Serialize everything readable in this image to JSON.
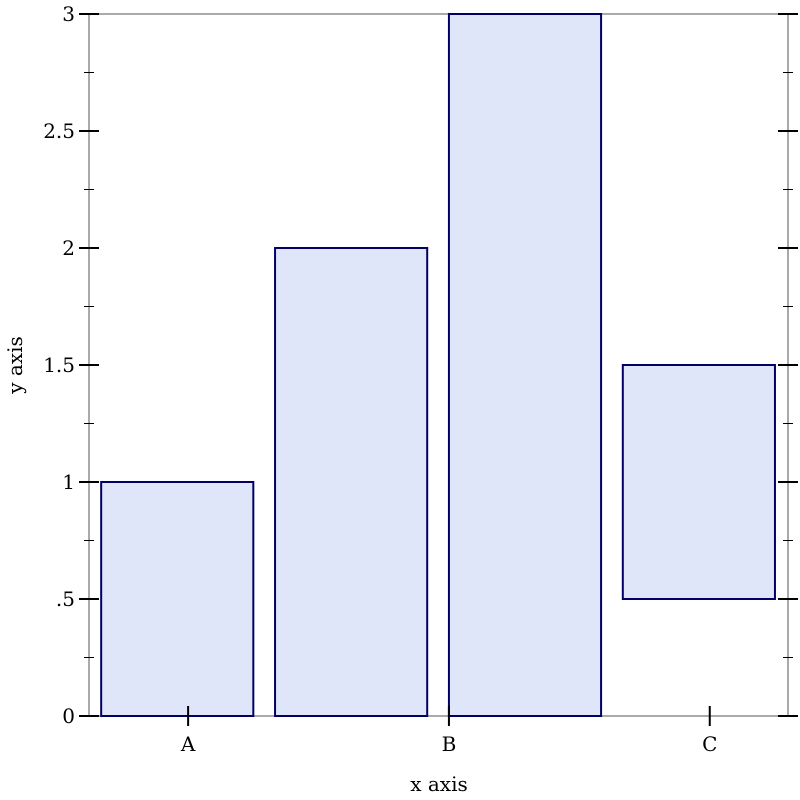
{
  "chart_data": {
    "type": "bar",
    "xlabel": "x axis",
    "ylabel": "y axis",
    "ylim": [
      0,
      3
    ],
    "yticks": [
      {
        "value": 0,
        "label": "0"
      },
      {
        "value": 0.5,
        "label": ".5"
      },
      {
        "value": 1,
        "label": "1"
      },
      {
        "value": 1.5,
        "label": "1.5"
      },
      {
        "value": 2,
        "label": "2"
      },
      {
        "value": 2.5,
        "label": "2.5"
      },
      {
        "value": 3,
        "label": "3"
      }
    ],
    "xticks": [
      {
        "value": 0.5,
        "label": "A"
      },
      {
        "value": 2,
        "label": "B"
      },
      {
        "value": 3.5,
        "label": "C"
      }
    ],
    "xlim": [
      -0.07,
      3.95
    ],
    "bars": [
      {
        "x_start": 0,
        "x_end": 0.875,
        "y_bottom": 0,
        "y_top": 1
      },
      {
        "x_start": 1,
        "x_end": 1.875,
        "y_bottom": 0,
        "y_top": 2
      },
      {
        "x_start": 2,
        "x_end": 2.875,
        "y_bottom": 0,
        "y_top": 3
      },
      {
        "x_start": 3,
        "x_end": 3.875,
        "y_bottom": 0.5,
        "y_top": 1.5
      }
    ],
    "colors": {
      "bar_fill": "#e0e6fa",
      "bar_stroke": "#000066",
      "frame": "#555555"
    },
    "grid": false
  }
}
